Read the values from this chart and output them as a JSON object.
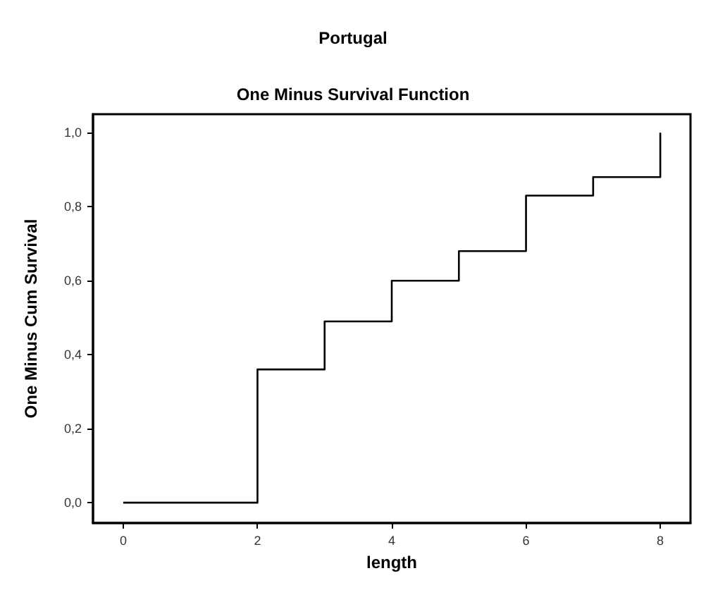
{
  "chart_data": {
    "type": "step",
    "title": "Portugal",
    "subtitle": "One Minus Survival Function",
    "xlabel": "length",
    "ylabel": "One Minus Cum Survival",
    "x": [
      0,
      2,
      3,
      4,
      5,
      6,
      7,
      8
    ],
    "series": [
      {
        "color": "#000000",
        "values": [
          0,
          0.36,
          0.49,
          0.6,
          0.68,
          0.83,
          0.88,
          1.0
        ]
      }
    ],
    "xlim": [
      -0.45,
      8.45
    ],
    "xticks": [
      0,
      2,
      4,
      6,
      8
    ],
    "ylim": [
      -0.055,
      1.05
    ],
    "yticks": [
      {
        "value": 0,
        "label": "0,0"
      },
      {
        "value": 0.2,
        "label": "0,2"
      },
      {
        "value": 0.4,
        "label": "0,4"
      },
      {
        "value": 0.6,
        "label": "0,6"
      },
      {
        "value": 0.8,
        "label": "0,8"
      },
      {
        "value": 1,
        "label": "1,0"
      }
    ],
    "grid": false,
    "marker": "none",
    "line_style": "solid"
  }
}
